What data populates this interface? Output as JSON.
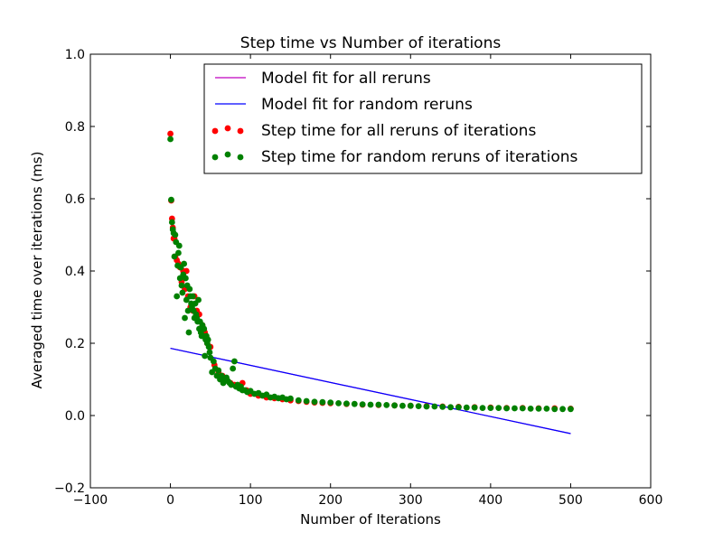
{
  "chart_data": {
    "type": "scatter",
    "title": "Step time vs Number of iterations",
    "xlabel": "Number of Iterations",
    "ylabel": "Averaged time over iterations (ms)",
    "xlim": [
      -100,
      600
    ],
    "ylim": [
      -0.2,
      1.0
    ],
    "xticks": [
      "−100",
      "0",
      "100",
      "200",
      "300",
      "400",
      "500",
      "600"
    ],
    "xtick_values": [
      -100,
      0,
      100,
      200,
      300,
      400,
      500,
      600
    ],
    "yticks": [
      "−0.2",
      "0.0",
      "0.2",
      "0.4",
      "0.6",
      "0.8",
      "1.0"
    ],
    "ytick_values": [
      -0.2,
      0.0,
      0.2,
      0.4,
      0.6,
      0.8,
      1.0
    ],
    "grid": false,
    "legend_position": "top-right",
    "series": [
      {
        "name": "Model fit for all reruns",
        "kind": "line",
        "color": "#bf00bf",
        "x": [
          0,
          500
        ],
        "y": [
          0.186,
          -0.05
        ]
      },
      {
        "name": "Model fit for random reruns",
        "kind": "line",
        "color": "#0000ff",
        "x": [
          0,
          500
        ],
        "y": [
          0.186,
          -0.05
        ]
      },
      {
        "name": "Step time for all reruns of iterations",
        "kind": "scatter",
        "color": "#ff0000",
        "x": [
          0,
          1,
          2,
          3,
          4,
          5,
          6,
          8,
          10,
          12,
          14,
          16,
          18,
          20,
          22,
          25,
          28,
          30,
          33,
          36,
          40,
          43,
          46,
          50,
          55,
          60,
          65,
          70,
          75,
          80,
          85,
          90,
          95,
          100,
          110,
          120,
          130,
          140,
          150,
          160,
          170,
          180,
          190,
          200,
          220,
          240,
          260,
          280,
          300,
          320,
          340,
          360,
          380,
          400,
          420,
          440,
          460,
          480,
          500
        ],
        "y": [
          0.78,
          0.595,
          0.545,
          0.52,
          0.49,
          0.49,
          0.44,
          0.43,
          0.42,
          0.41,
          0.37,
          0.4,
          0.35,
          0.4,
          0.33,
          0.3,
          0.29,
          0.33,
          0.29,
          0.28,
          0.25,
          0.23,
          0.2,
          0.19,
          0.14,
          0.12,
          0.11,
          0.1,
          0.09,
          0.085,
          0.08,
          0.09,
          0.07,
          0.06,
          0.055,
          0.05,
          0.048,
          0.045,
          0.042,
          0.04,
          0.038,
          0.036,
          0.035,
          0.034,
          0.032,
          0.03,
          0.029,
          0.028,
          0.027,
          0.026,
          0.025,
          0.024,
          0.023,
          0.022,
          0.021,
          0.021,
          0.02,
          0.02,
          0.019
        ]
      },
      {
        "name": "Step time for random reruns of iterations",
        "kind": "scatter",
        "color": "#008000",
        "x": [
          0,
          1,
          2,
          3,
          4,
          5,
          6,
          7,
          8,
          9,
          10,
          11,
          12,
          13,
          14,
          15,
          16,
          17,
          18,
          19,
          20,
          21,
          22,
          23,
          24,
          25,
          26,
          27,
          28,
          29,
          30,
          31,
          32,
          33,
          34,
          35,
          36,
          37,
          38,
          39,
          40,
          41,
          42,
          43,
          44,
          45,
          46,
          47,
          48,
          49,
          50,
          52,
          54,
          56,
          58,
          60,
          62,
          64,
          66,
          68,
          70,
          72,
          74,
          76,
          78,
          80,
          82,
          84,
          86,
          88,
          90,
          93,
          96,
          100,
          105,
          110,
          115,
          120,
          125,
          130,
          135,
          140,
          145,
          150,
          160,
          170,
          180,
          190,
          200,
          210,
          220,
          230,
          240,
          250,
          260,
          270,
          280,
          290,
          300,
          310,
          320,
          330,
          340,
          350,
          360,
          370,
          380,
          390,
          400,
          410,
          420,
          430,
          440,
          450,
          460,
          470,
          480,
          490,
          500
        ],
        "y": [
          0.765,
          0.597,
          0.535,
          0.515,
          0.505,
          0.44,
          0.5,
          0.48,
          0.33,
          0.415,
          0.45,
          0.47,
          0.38,
          0.41,
          0.36,
          0.34,
          0.39,
          0.42,
          0.27,
          0.38,
          0.32,
          0.36,
          0.29,
          0.23,
          0.35,
          0.33,
          0.31,
          0.3,
          0.33,
          0.29,
          0.27,
          0.31,
          0.28,
          0.27,
          0.26,
          0.32,
          0.24,
          0.26,
          0.23,
          0.22,
          0.25,
          0.22,
          0.24,
          0.165,
          0.21,
          0.22,
          0.2,
          0.21,
          0.19,
          0.175,
          0.16,
          0.12,
          0.15,
          0.13,
          0.11,
          0.125,
          0.1,
          0.11,
          0.09,
          0.1,
          0.105,
          0.095,
          0.09,
          0.085,
          0.13,
          0.15,
          0.08,
          0.085,
          0.075,
          0.08,
          0.07,
          0.07,
          0.065,
          0.068,
          0.06,
          0.062,
          0.055,
          0.058,
          0.05,
          0.052,
          0.048,
          0.05,
          0.045,
          0.047,
          0.042,
          0.04,
          0.038,
          0.037,
          0.036,
          0.034,
          0.033,
          0.032,
          0.031,
          0.03,
          0.03,
          0.029,
          0.028,
          0.027,
          0.027,
          0.026,
          0.025,
          0.025,
          0.024,
          0.023,
          0.023,
          0.022,
          0.022,
          0.021,
          0.021,
          0.021,
          0.02,
          0.02,
          0.02,
          0.019,
          0.019,
          0.019,
          0.018,
          0.018,
          0.018
        ]
      }
    ]
  }
}
